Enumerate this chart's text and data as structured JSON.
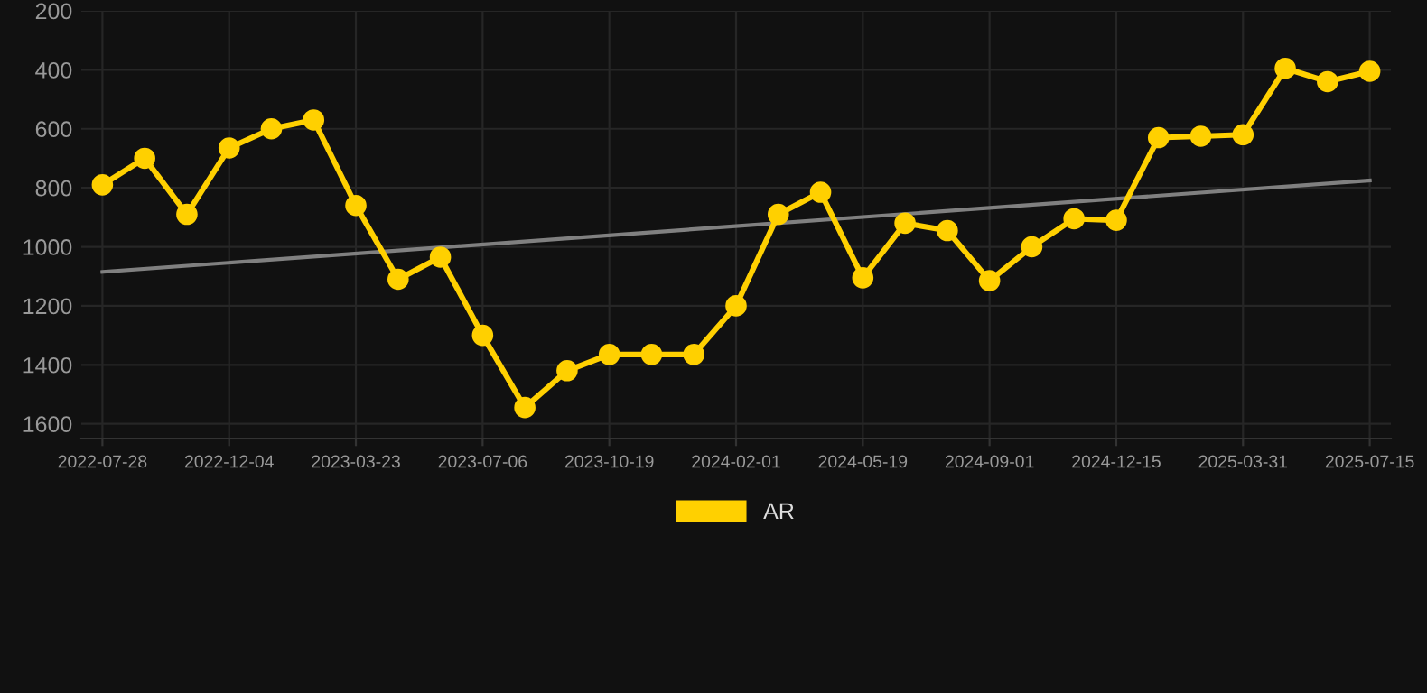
{
  "chart_data": {
    "type": "line",
    "categories": [
      "2022-07-28",
      null,
      null,
      "2022-12-04",
      null,
      null,
      "2023-03-23",
      null,
      null,
      "2023-07-06",
      null,
      null,
      "2023-10-19",
      null,
      null,
      "2024-02-01",
      null,
      null,
      "2024-05-19",
      null,
      null,
      "2024-09-01",
      null,
      null,
      "2024-12-15",
      null,
      null,
      "2025-03-31",
      null,
      null,
      "2025-07-15"
    ],
    "series": [
      {
        "name": "AR",
        "color": "#ffd000",
        "marker": "circle",
        "values": [
          790,
          700,
          890,
          665,
          600,
          570,
          860,
          1110,
          1035,
          1300,
          1545,
          1420,
          1365,
          1365,
          1365,
          1200,
          890,
          815,
          1105,
          920,
          945,
          1115,
          1000,
          905,
          910,
          630,
          625,
          620,
          395,
          440,
          405
        ]
      },
      {
        "color": "#808080",
        "marker": "none",
        "values": [
          1085,
          null,
          null,
          null,
          null,
          null,
          null,
          null,
          null,
          null,
          null,
          null,
          null,
          null,
          null,
          null,
          null,
          null,
          null,
          null,
          null,
          null,
          null,
          null,
          null,
          null,
          null,
          null,
          null,
          null,
          775
        ]
      }
    ],
    "ylim": [
      1650,
      200
    ],
    "yticks": [
      200,
      400,
      600,
      800,
      1000,
      1200,
      1400,
      1600
    ],
    "grid": true,
    "legend": "bottom"
  }
}
